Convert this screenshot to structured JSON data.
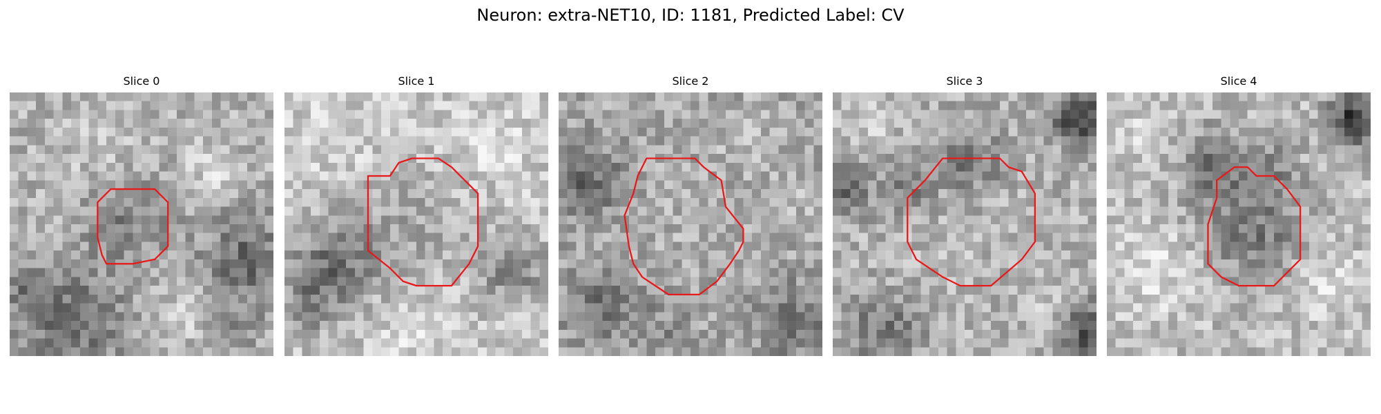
{
  "figure": {
    "title": "Neuron: extra-NET10, ID: 1181, Predicted Label: CV"
  },
  "slices": [
    {
      "label": "Slice 0"
    },
    {
      "label": "Slice 1"
    },
    {
      "label": "Slice 2"
    },
    {
      "label": "Slice 3"
    },
    {
      "label": "Slice 4"
    }
  ],
  "outline_color": "#e8191a",
  "colormap": "grayscale"
}
